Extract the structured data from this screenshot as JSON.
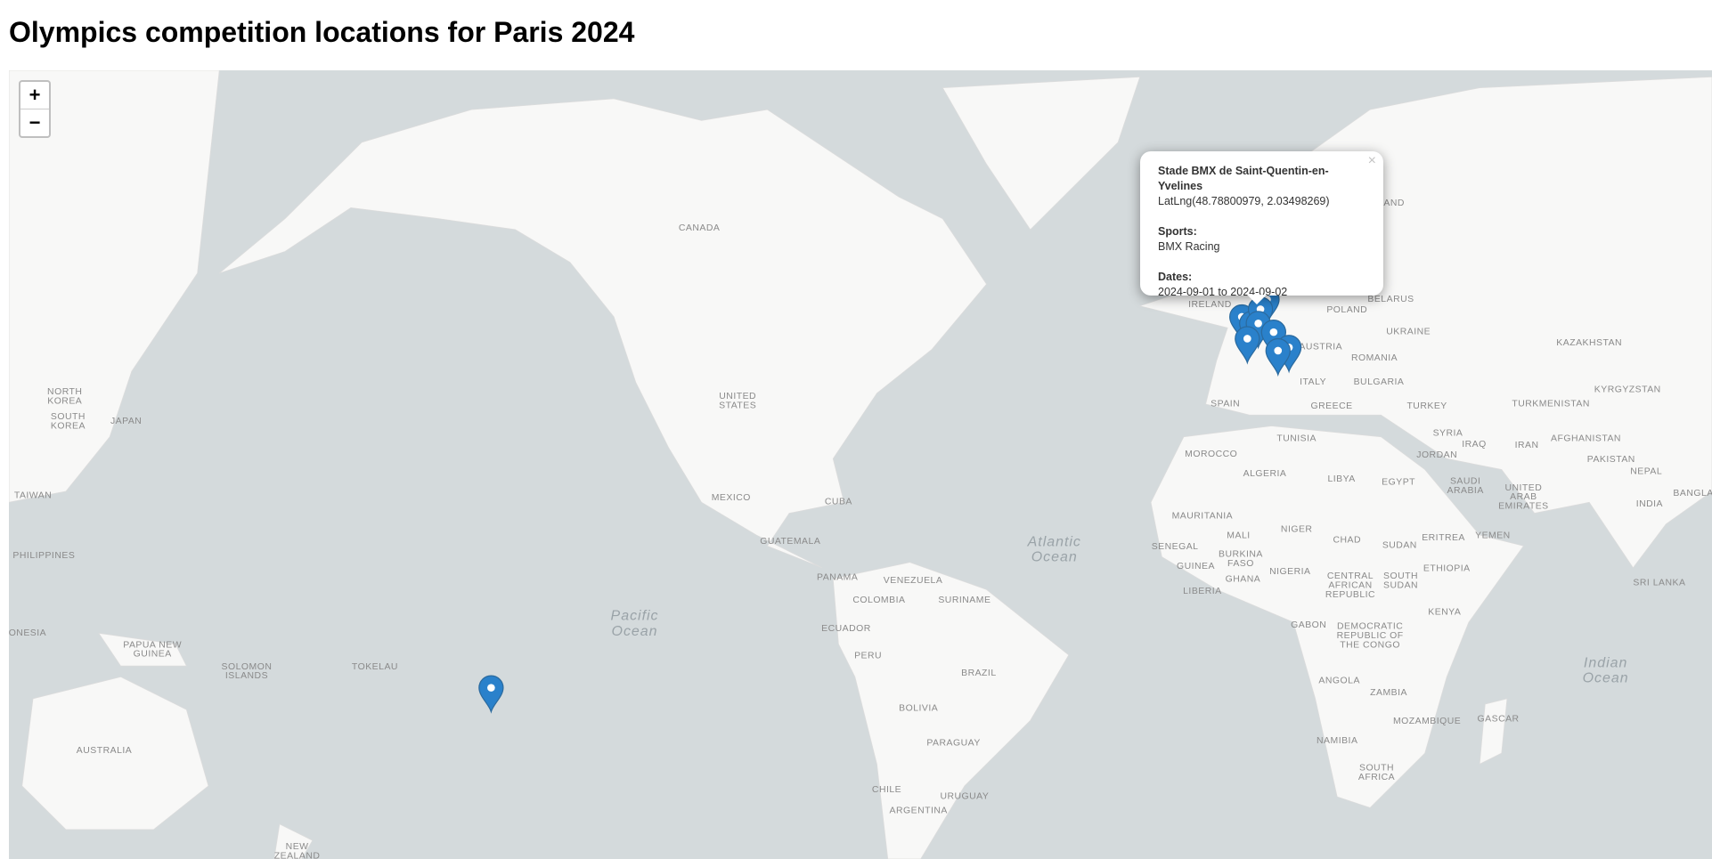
{
  "header": {
    "title": "Olympics competition locations for Paris 2024"
  },
  "map": {
    "zoom_in": "+",
    "zoom_out": "−",
    "labels": [
      [
        "CANADA"
      ],
      [
        "UNITED",
        "STATES"
      ],
      [
        "MEXICO"
      ],
      [
        "CUBA"
      ],
      [
        "GUATEMALA"
      ],
      [
        "PANAMA"
      ],
      [
        "VENEZUELA"
      ],
      [
        "COLOMBIA"
      ],
      [
        "SURINAME"
      ],
      [
        "ECUADOR"
      ],
      [
        "PERU"
      ],
      [
        "BRAZIL"
      ],
      [
        "BOLIVIA"
      ],
      [
        "PARAGUAY"
      ],
      [
        "CHILE"
      ],
      [
        "URUGUAY"
      ],
      [
        "ARGENTINA"
      ],
      [
        "Pacific",
        "Ocean"
      ],
      [
        "Atlantic",
        "Ocean"
      ],
      [
        "Indian",
        "Ocean"
      ],
      [
        "TOKELAU"
      ],
      [
        "SOLOMON",
        "ISLANDS"
      ],
      [
        "PAPUA NEW",
        "GUINEA"
      ],
      [
        "AUSTRALIA"
      ],
      [
        "NEW",
        "ZEALAND"
      ],
      [
        "NORTH",
        "KOREA"
      ],
      [
        "SOUTH",
        "KOREA"
      ],
      [
        "JAPAN"
      ],
      [
        "TAIWAN"
      ],
      [
        "PHILIPPINES"
      ],
      [
        "ONESIA"
      ],
      [
        "IRELAND"
      ],
      [
        "SPAIN"
      ],
      [
        "MOROCCO"
      ],
      [
        "ALGERIA"
      ],
      [
        "TUNISIA"
      ],
      [
        "LIBYA"
      ],
      [
        "EGYPT"
      ],
      [
        "MAURITANIA"
      ],
      [
        "MALI"
      ],
      [
        "NIGER"
      ],
      [
        "CHAD"
      ],
      [
        "SUDAN"
      ],
      [
        "ERITREA"
      ],
      [
        "YEMEN"
      ],
      [
        "SENEGAL"
      ],
      [
        "GUINEA"
      ],
      [
        "BURKINA",
        "FASO"
      ],
      [
        "NIGERIA"
      ],
      [
        "GHANA"
      ],
      [
        "LIBERIA"
      ],
      [
        "CENTRAL",
        "AFRICAN",
        "REPUBLIC"
      ],
      [
        "SOUTH",
        "SUDAN"
      ],
      [
        "ETHIOPIA"
      ],
      [
        "KENYA"
      ],
      [
        "GABON"
      ],
      [
        "DEMOCRATIC",
        "REPUBLIC OF",
        "THE CONGO"
      ],
      [
        "ANGOLA"
      ],
      [
        "ZAMBIA"
      ],
      [
        "MOZAMBIQUE"
      ],
      [
        "GASCAR"
      ],
      [
        "NAMIBIA"
      ],
      [
        "SOUTH",
        "AFRICA"
      ],
      [
        "POLAND"
      ],
      [
        "BELARUS"
      ],
      [
        "UKRAINE"
      ],
      [
        "AUSTRIA"
      ],
      [
        "ROMANIA"
      ],
      [
        "ITALY"
      ],
      [
        "BULGARIA"
      ],
      [
        "GREECE"
      ],
      [
        "TURKEY"
      ],
      [
        "SYRIA"
      ],
      [
        "IRAQ"
      ],
      [
        "IRAN"
      ],
      [
        "JORDAN"
      ],
      [
        "SAUDI",
        "ARABIA"
      ],
      [
        "UNITED",
        "ARAB",
        "EMIRATES"
      ],
      [
        "KAZAKHSTAN"
      ],
      [
        "KYRGYZSTAN"
      ],
      [
        "TURKMENISTAN"
      ],
      [
        "AFGHANISTAN"
      ],
      [
        "PAKISTAN"
      ],
      [
        "NEPAL"
      ],
      [
        "BANGLA"
      ],
      [
        "INDIA"
      ],
      [
        "SRI LANKA"
      ],
      [
        "AND"
      ]
    ]
  },
  "popup": {
    "close": "×",
    "venue": "Stade BMX de Saint-Quentin-en-Yvelines",
    "latlng": "LatLng(48.78800979, 2.03498269)",
    "sports_label": "Sports:",
    "sports": "BMX Racing",
    "dates_label": "Dates:",
    "dates": "2024-09-01 to 2024-09-02"
  }
}
